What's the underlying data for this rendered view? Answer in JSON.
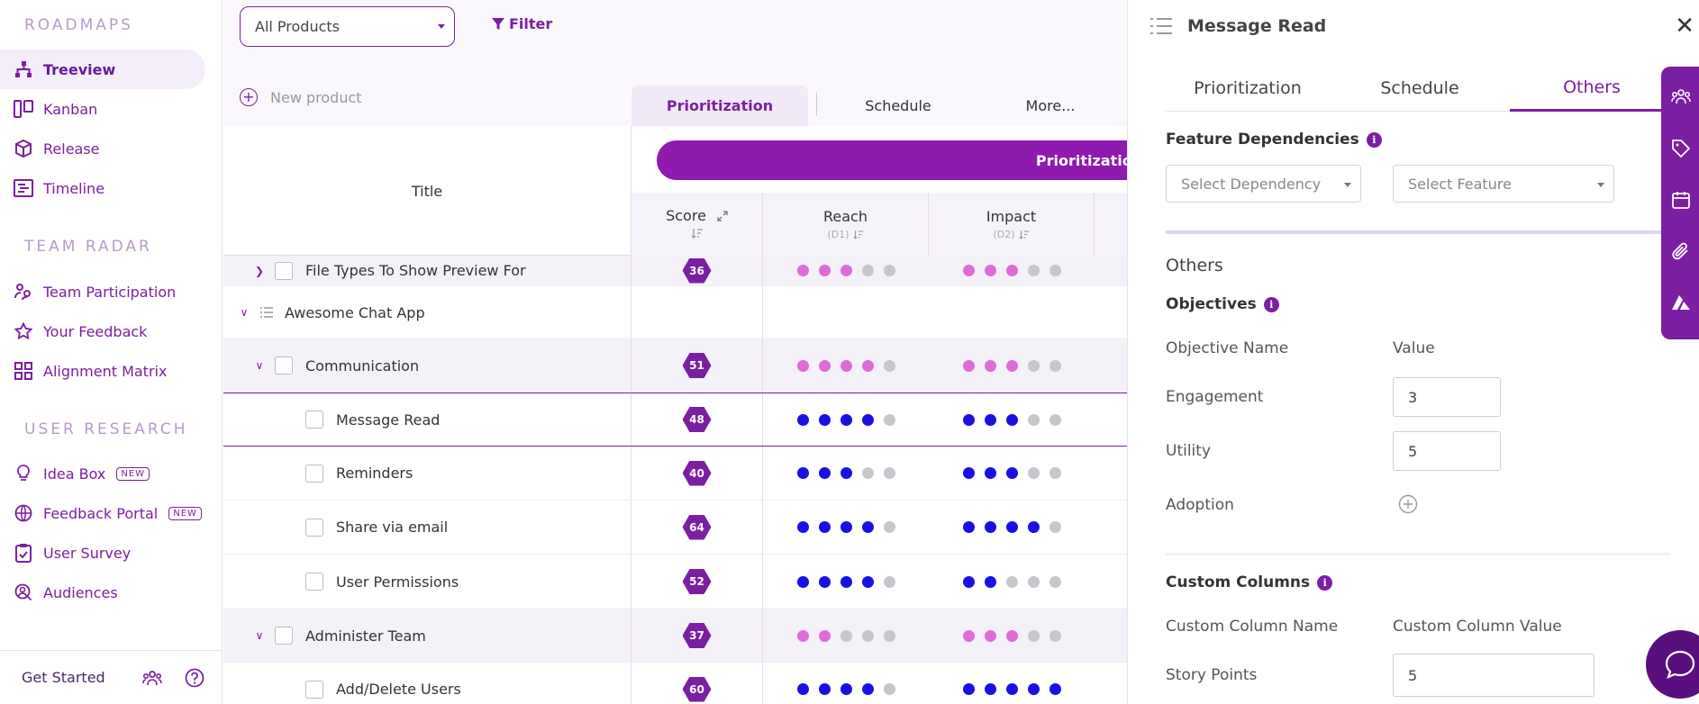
{
  "sidebar": {
    "sections": {
      "roadmaps": "ROADMAPS",
      "team_radar": "TEAM RADAR",
      "user_research": "USER RESEARCH"
    },
    "items": [
      {
        "label": "Treeview",
        "icon": "tree-icon"
      },
      {
        "label": "Kanban",
        "icon": "kanban-icon"
      },
      {
        "label": "Release",
        "icon": "cube-icon"
      },
      {
        "label": "Timeline",
        "icon": "timeline-icon"
      },
      {
        "label": "Team Participation",
        "icon": "team-icon"
      },
      {
        "label": "Your Feedback",
        "icon": "star-icon"
      },
      {
        "label": "Alignment Matrix",
        "icon": "grid-icon"
      },
      {
        "label": "Idea Box",
        "icon": "bulb-icon",
        "badge": "NEW"
      },
      {
        "label": "Feedback Portal",
        "icon": "globe-icon",
        "badge": "NEW"
      },
      {
        "label": "User Survey",
        "icon": "clipboard-icon"
      },
      {
        "label": "Audiences",
        "icon": "audience-icon"
      }
    ],
    "footer": {
      "get_started": "Get Started"
    }
  },
  "toolbar": {
    "product_select": "All Products",
    "filter_label": "Filter",
    "new_product": "New product"
  },
  "view_tabs": [
    "Prioritization",
    "Schedule",
    "More..."
  ],
  "table": {
    "title_header": "Title",
    "band_label": "Prioritization D",
    "columns": [
      {
        "name": "Score",
        "sub": ""
      },
      {
        "name": "Reach",
        "sub": "(D1)"
      },
      {
        "name": "Impact",
        "sub": "(D2)"
      }
    ],
    "rows": [
      {
        "title": "File Types To Show Preview For",
        "score": "36",
        "kind": "feature-partial"
      },
      {
        "title": "Awesome Chat App",
        "score": "",
        "kind": "product"
      },
      {
        "title": "Communication",
        "score": "51",
        "kind": "group"
      },
      {
        "title": "Message Read",
        "score": "48",
        "kind": "feature"
      },
      {
        "title": "Reminders",
        "score": "40",
        "kind": "feature"
      },
      {
        "title": "Share via email",
        "score": "64",
        "kind": "feature"
      },
      {
        "title": "User Permissions",
        "score": "52",
        "kind": "feature"
      },
      {
        "title": "Administer Team",
        "score": "37",
        "kind": "group"
      },
      {
        "title": "Add/Delete Users",
        "score": "60",
        "kind": "feature"
      }
    ],
    "reach_dots": [
      3,
      0,
      4,
      4,
      3,
      4,
      4,
      2,
      4
    ],
    "impact_dots": [
      3,
      0,
      3,
      3,
      3,
      4,
      2,
      3,
      5
    ],
    "colors": {
      "group_dot": "#e06ad8",
      "feature_dot": "#1a10e6",
      "empty_dot": "#c6c6cc",
      "accent": "#7b1fa2"
    }
  },
  "panel": {
    "title": "Message Read",
    "tabs": [
      "Prioritization",
      "Schedule",
      "Others"
    ],
    "active_tab": "Others",
    "feature_dependencies": "Feature Dependencies",
    "select_dependency": "Select Dependency",
    "select_feature": "Select Feature",
    "others_heading": "Others",
    "objectives": "Objectives",
    "objective_name": "Objective Name",
    "value": "Value",
    "objectives_list": [
      {
        "name": "Engagement",
        "value": "3"
      },
      {
        "name": "Utility",
        "value": "5"
      },
      {
        "name": "Adoption",
        "value": ""
      }
    ],
    "custom_columns": "Custom Columns",
    "custom_column_name": "Custom Column Name",
    "custom_column_value": "Custom Column Value",
    "story_points_label": "Story Points",
    "story_points_value": "5"
  }
}
